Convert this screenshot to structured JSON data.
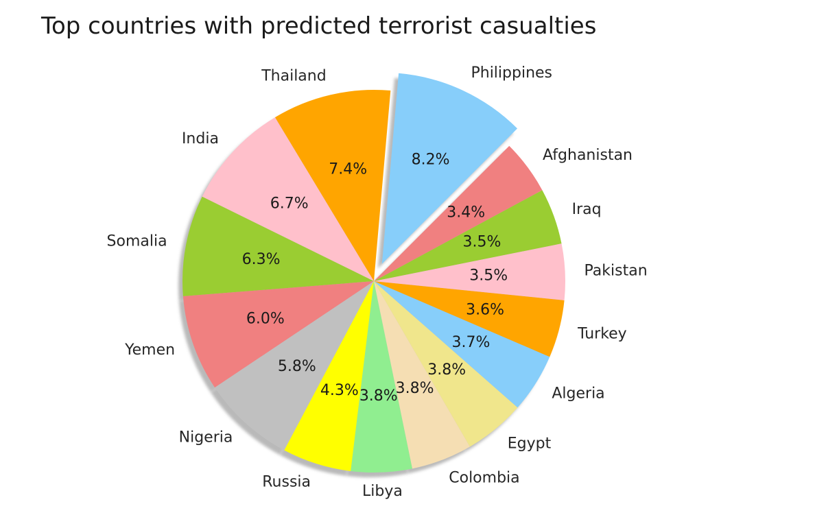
{
  "chart_data": {
    "type": "pie",
    "title": "Top countries with predicted terrorist casualties",
    "slices": [
      {
        "label": "Philippines",
        "value": 8.2,
        "pct_label": "8.2%",
        "color": "#87CEFA",
        "exploded": true
      },
      {
        "label": "Thailand",
        "value": 7.4,
        "pct_label": "7.4%",
        "color": "#FFA500",
        "exploded": false
      },
      {
        "label": "India",
        "value": 6.7,
        "pct_label": "6.7%",
        "color": "#FFC0CB",
        "exploded": false
      },
      {
        "label": "Somalia",
        "value": 6.3,
        "pct_label": "6.3%",
        "color": "#9ACD32",
        "exploded": false
      },
      {
        "label": "Yemen",
        "value": 6.0,
        "pct_label": "6.0%",
        "color": "#F08080",
        "exploded": false
      },
      {
        "label": "Nigeria",
        "value": 5.8,
        "pct_label": "5.8%",
        "color": "#C0C0C0",
        "exploded": false
      },
      {
        "label": "Russia",
        "value": 4.3,
        "pct_label": "4.3%",
        "color": "#FFFF00",
        "exploded": false
      },
      {
        "label": "Libya",
        "value": 3.8,
        "pct_label": "3.8%",
        "color": "#90EE90",
        "exploded": false
      },
      {
        "label": "Colombia",
        "value": 3.8,
        "pct_label": "3.8%",
        "color": "#F5DEB3",
        "exploded": false
      },
      {
        "label": "Egypt",
        "value": 3.8,
        "pct_label": "3.8%",
        "color": "#F0E68C",
        "exploded": false
      },
      {
        "label": "Algeria",
        "value": 3.7,
        "pct_label": "3.7%",
        "color": "#87CEFA",
        "exploded": false
      },
      {
        "label": "Turkey",
        "value": 3.6,
        "pct_label": "3.6%",
        "color": "#FFA500",
        "exploded": false
      },
      {
        "label": "Pakistan",
        "value": 3.5,
        "pct_label": "3.5%",
        "color": "#FFC0CB",
        "exploded": false
      },
      {
        "label": "Iraq",
        "value": 3.5,
        "pct_label": "3.5%",
        "color": "#9ACD32",
        "exploded": false
      },
      {
        "label": "Afghanistan",
        "value": 3.4,
        "pct_label": "3.4%",
        "color": "#F08080",
        "exploded": false
      }
    ],
    "start_angle_deg": 45,
    "direction": "counterclockwise",
    "shadow": true,
    "legend": "none"
  }
}
